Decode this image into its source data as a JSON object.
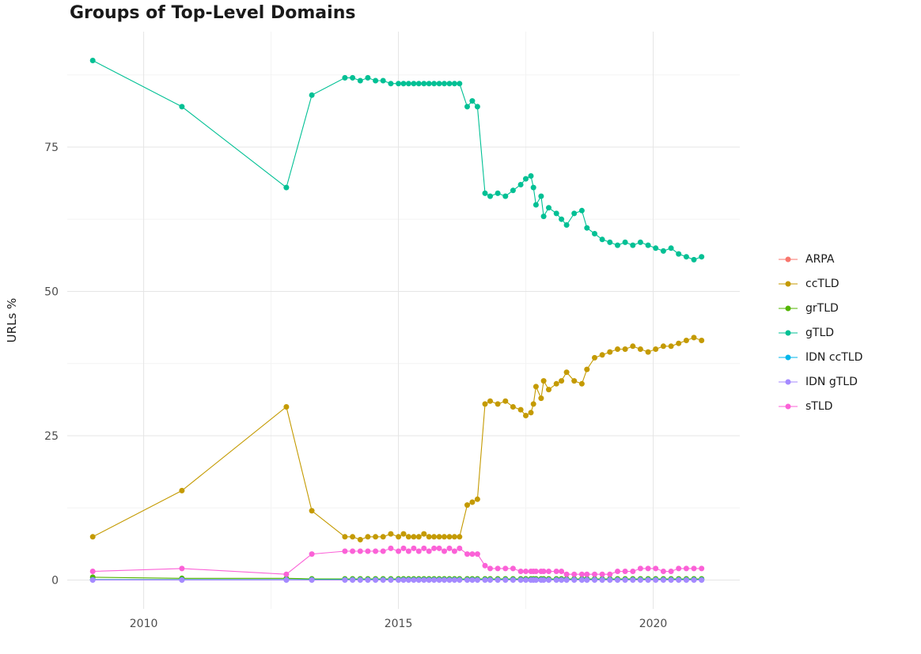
{
  "chart_data": {
    "type": "line",
    "title": "Groups of Top-Level Domains",
    "xlabel": "",
    "ylabel": "URLs %",
    "xlim": [
      2008.5,
      2021.7
    ],
    "ylim": [
      -5,
      95
    ],
    "x_ticks": [
      2010,
      2015,
      2020
    ],
    "y_ticks": [
      0,
      25,
      50,
      75
    ],
    "grid": true,
    "legend_position": "right",
    "x": [
      2009.0,
      2010.75,
      2012.8,
      2013.3,
      2013.95,
      2014.1,
      2014.25,
      2014.4,
      2014.55,
      2014.7,
      2014.85,
      2015.0,
      2015.1,
      2015.2,
      2015.3,
      2015.4,
      2015.5,
      2015.6,
      2015.7,
      2015.8,
      2015.9,
      2016.0,
      2016.1,
      2016.2,
      2016.35,
      2016.45,
      2016.55,
      2016.7,
      2016.8,
      2016.95,
      2017.1,
      2017.25,
      2017.4,
      2017.5,
      2017.6,
      2017.65,
      2017.7,
      2017.8,
      2017.85,
      2017.95,
      2018.1,
      2018.2,
      2018.3,
      2018.45,
      2018.6,
      2018.7,
      2018.85,
      2019.0,
      2019.15,
      2019.3,
      2019.45,
      2019.6,
      2019.75,
      2019.9,
      2020.05,
      2020.2,
      2020.35,
      2020.5,
      2020.65,
      2020.8,
      2020.95
    ],
    "series": [
      {
        "name": "ARPA",
        "color": "#F8766D",
        "values": [
          0.1,
          0.1,
          0.1,
          0.1,
          0.1,
          0.1,
          0.1,
          0.1,
          0.1,
          0.1,
          0.1,
          0.1,
          0.1,
          0.1,
          0.1,
          0.1,
          0.1,
          0.1,
          0.1,
          0.1,
          0.1,
          0.1,
          0.1,
          0.1,
          0.1,
          0.1,
          0.1,
          0.1,
          0.1,
          0.1,
          0.1,
          0.1,
          0.1,
          0.1,
          0.1,
          0.1,
          0.1,
          0.1,
          0.1,
          0.1,
          0.1,
          0.1,
          0.1,
          0.1,
          0.1,
          0.1,
          0.1,
          0.1,
          0.1,
          0.1,
          0.1,
          0.1,
          0.1,
          0.1,
          0.1,
          0.1,
          0.1,
          0.1,
          0.1,
          0.1,
          0.1
        ]
      },
      {
        "name": "ccTLD",
        "color": "#C49A00",
        "values": [
          7.5,
          15.5,
          30,
          12,
          7.5,
          7.5,
          7,
          7.5,
          7.5,
          7.5,
          8,
          7.5,
          8,
          7.5,
          7.5,
          7.5,
          8,
          7.5,
          7.5,
          7.5,
          7.5,
          7.5,
          7.5,
          7.5,
          13,
          13.5,
          14,
          30.5,
          31,
          30.5,
          31,
          30,
          29.5,
          28.5,
          29,
          30.5,
          33.5,
          31.5,
          34.5,
          33,
          34,
          34.5,
          36,
          34.5,
          34,
          36.5,
          38.5,
          39,
          39.5,
          40,
          40,
          40.5,
          40,
          39.5,
          40,
          40.5,
          40.5,
          41,
          41.5,
          42,
          41.5
        ]
      },
      {
        "name": "grTLD",
        "color": "#53B400",
        "values": [
          0.5,
          0.3,
          0.3,
          0.2,
          0.2,
          0.2,
          0.2,
          0.2,
          0.2,
          0.2,
          0.2,
          0.2,
          0.2,
          0.2,
          0.2,
          0.2,
          0.2,
          0.2,
          0.2,
          0.2,
          0.2,
          0.2,
          0.2,
          0.2,
          0.2,
          0.2,
          0.2,
          0.2,
          0.2,
          0.2,
          0.2,
          0.2,
          0.2,
          0.2,
          0.2,
          0.2,
          0.2,
          0.2,
          0.2,
          0.2,
          0.2,
          0.2,
          0.2,
          0.2,
          0.2,
          0.2,
          0.2,
          0.2,
          0.2,
          0.2,
          0.2,
          0.2,
          0.2,
          0.2,
          0.2,
          0.2,
          0.2,
          0.2,
          0.2,
          0.2,
          0.2
        ]
      },
      {
        "name": "gTLD",
        "color": "#00C094",
        "values": [
          90,
          82,
          68,
          84,
          87,
          87,
          86.5,
          87,
          86.5,
          86.5,
          86,
          86,
          86,
          86,
          86,
          86,
          86,
          86,
          86,
          86,
          86,
          86,
          86,
          86,
          82,
          83,
          82,
          67,
          66.5,
          67,
          66.5,
          67.5,
          68.5,
          69.5,
          70,
          68,
          65,
          66.5,
          63,
          64.5,
          63.5,
          62.5,
          61.5,
          63.5,
          64,
          61,
          60,
          59,
          58.5,
          58,
          58.5,
          58,
          58.5,
          58,
          57.5,
          57,
          57.5,
          56.5,
          56,
          55.5,
          56
        ]
      },
      {
        "name": "IDN ccTLD",
        "color": "#00B6EB",
        "values": [
          0.05,
          0.05,
          0.05,
          0.05,
          0.05,
          0.05,
          0.05,
          0.05,
          0.05,
          0.05,
          0.05,
          0.05,
          0.05,
          0.05,
          0.05,
          0.05,
          0.05,
          0.05,
          0.05,
          0.05,
          0.05,
          0.05,
          0.05,
          0.05,
          0.05,
          0.05,
          0.05,
          0.05,
          0.05,
          0.05,
          0.05,
          0.05,
          0.05,
          0.05,
          0.05,
          0.05,
          0.05,
          0.05,
          0.05,
          0.05,
          0.05,
          0.05,
          0.05,
          0.05,
          0.05,
          0.05,
          0.05,
          0.05,
          0.05,
          0.05,
          0.05,
          0.05,
          0.05,
          0.05,
          0.05,
          0.05,
          0.05,
          0.05,
          0.05,
          0.05,
          0.05
        ]
      },
      {
        "name": "IDN gTLD",
        "color": "#A58AFF",
        "values": [
          0,
          0,
          0,
          0,
          0,
          0,
          0,
          0,
          0,
          0,
          0,
          0,
          0,
          0,
          0,
          0,
          0,
          0,
          0,
          0,
          0,
          0,
          0,
          0,
          0,
          0,
          0,
          0,
          0,
          0,
          0,
          0,
          0,
          0,
          0,
          0,
          0,
          0,
          0,
          0,
          0,
          0,
          0,
          0,
          0,
          0,
          0,
          0,
          0,
          0,
          0,
          0,
          0,
          0,
          0,
          0,
          0,
          0,
          0,
          0,
          0
        ]
      },
      {
        "name": "sTLD",
        "color": "#FB61D7",
        "values": [
          1.5,
          2,
          1,
          4.5,
          5,
          5,
          5,
          5,
          5,
          5,
          5.5,
          5,
          5.5,
          5,
          5.5,
          5,
          5.5,
          5,
          5.5,
          5.5,
          5,
          5.5,
          5,
          5.5,
          4.5,
          4.5,
          4.5,
          2.5,
          2,
          2,
          2,
          2,
          1.5,
          1.5,
          1.5,
          1.5,
          1.5,
          1.5,
          1.5,
          1.5,
          1.5,
          1.5,
          1,
          1,
          1,
          1,
          1,
          1,
          1,
          1.5,
          1.5,
          1.5,
          2,
          2,
          2,
          1.5,
          1.5,
          2,
          2,
          2,
          2
        ]
      }
    ]
  }
}
